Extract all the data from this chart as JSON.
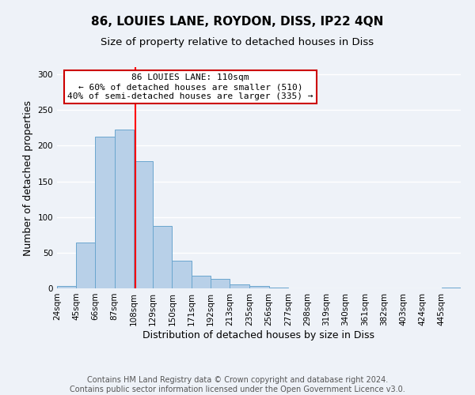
{
  "title": "86, LOUIES LANE, ROYDON, DISS, IP22 4QN",
  "subtitle": "Size of property relative to detached houses in Diss",
  "xlabel": "Distribution of detached houses by size in Diss",
  "ylabel": "Number of detached properties",
  "bar_values": [
    3,
    64,
    213,
    222,
    178,
    88,
    39,
    18,
    13,
    5,
    3,
    1,
    0,
    0,
    0,
    0,
    0,
    0,
    0,
    0,
    1
  ],
  "bin_edges": [
    24,
    45,
    66,
    87,
    108,
    129,
    150,
    171,
    192,
    213,
    235,
    256,
    277,
    298,
    319,
    340,
    361,
    382,
    403,
    424,
    445,
    466
  ],
  "tick_labels": [
    "24sqm",
    "45sqm",
    "66sqm",
    "87sqm",
    "108sqm",
    "129sqm",
    "150sqm",
    "171sqm",
    "192sqm",
    "213sqm",
    "235sqm",
    "256sqm",
    "277sqm",
    "298sqm",
    "319sqm",
    "340sqm",
    "361sqm",
    "382sqm",
    "403sqm",
    "424sqm",
    "445sqm"
  ],
  "bar_color": "#b8d0e8",
  "bar_edge_color": "#6aa6ce",
  "red_line_x": 110,
  "ylim": [
    0,
    310
  ],
  "yticks": [
    0,
    50,
    100,
    150,
    200,
    250,
    300
  ],
  "annotation_title": "86 LOUIES LANE: 110sqm",
  "annotation_line2": "← 60% of detached houses are smaller (510)",
  "annotation_line3": "40% of semi-detached houses are larger (335) →",
  "annotation_box_color": "#ffffff",
  "annotation_box_edge": "#cc0000",
  "footer_line1": "Contains HM Land Registry data © Crown copyright and database right 2024.",
  "footer_line2": "Contains public sector information licensed under the Open Government Licence v3.0.",
  "bg_color": "#eef2f8",
  "grid_color": "#ffffff",
  "title_fontsize": 11,
  "subtitle_fontsize": 9.5,
  "axis_label_fontsize": 9,
  "tick_fontsize": 7.5,
  "annotation_fontsize": 8,
  "footer_fontsize": 7
}
